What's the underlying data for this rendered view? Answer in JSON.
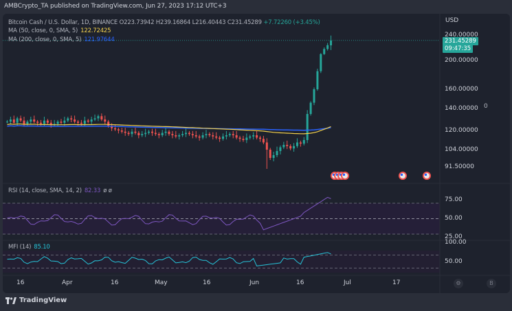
{
  "header": {
    "publish_text": "AMBCrypto_TA published on TradingView.com, Jun 27, 2023 17:12 UTC+3"
  },
  "legend": {
    "symbol": "Bitcoin Cash / U.S. Dollar, 1D, BINANCE",
    "open": "O223.73942",
    "high": "H239.16864",
    "low": "L216.40443",
    "close": "C231.45289",
    "change": "+7.72260 (+3.45%)",
    "ma50_label": "MA (50, close, 0, SMA, 5)",
    "ma50_value": "122.72425",
    "ma200_label": "MA (200, close, 0, SMA, 5)",
    "ma200_value": "121.97644"
  },
  "rsi": {
    "label": "RSI (14, close, SMA, 14, 2)",
    "value": "82.33",
    "extra": "ø ø"
  },
  "mfi": {
    "label": "MFI (14)",
    "value": "85.10"
  },
  "price_axis": {
    "currency": "USD",
    "ticks": [
      "240.00000",
      "200.00000",
      "160.00000",
      "140.00000",
      "120.00000",
      "104.00000",
      "91.50000"
    ],
    "current_price": "231.45289",
    "countdown": "09:47:35",
    "side_marker": "0"
  },
  "rsi_axis": {
    "ticks": [
      "75.00",
      "50.00",
      "25.00"
    ]
  },
  "mfi_axis": {
    "ticks": [
      "100.00",
      "50.00"
    ]
  },
  "time_axis": {
    "ticks": [
      "16",
      "Apr",
      "16",
      "May",
      "16",
      "Jun",
      "16",
      "Jul",
      "17"
    ]
  },
  "footer": {
    "brand": "TradingView"
  },
  "buttons": {
    "settings_glyph": "⚙",
    "auto_glyph": "B"
  },
  "colors": {
    "up": "#26a69a",
    "down": "#ef5350",
    "ma50": "#f5d24d",
    "ma200": "#2962ff",
    "rsi": "#7e57c2",
    "mfi": "#26c6da"
  },
  "chart_data": {
    "type": "candlestick",
    "title": "Bitcoin Cash / U.S. Dollar, 1D, BINANCE",
    "price_range": [
      91.5,
      240
    ],
    "x_range": [
      "Mar 14, 2023",
      "Jun 27, 2023"
    ],
    "x_ticks": [
      "16",
      "Apr",
      "16",
      "May",
      "16",
      "Jun",
      "16",
      "Jul",
      "17"
    ],
    "last_candle": {
      "open": 223.73942,
      "high": 239.16864,
      "low": 216.40443,
      "close": 231.45289
    },
    "candles_close": [
      128,
      130,
      127,
      131,
      129,
      126,
      128,
      130,
      128,
      127,
      126,
      129,
      127,
      125,
      126,
      128,
      127,
      129,
      131,
      130,
      128,
      127,
      126,
      129,
      128,
      130,
      131,
      133,
      130,
      128,
      124,
      122,
      121,
      120,
      119,
      118,
      117,
      119,
      118,
      116,
      117,
      118,
      119,
      118,
      117,
      116,
      118,
      119,
      117,
      116,
      115,
      116,
      117,
      118,
      117,
      116,
      115,
      114,
      116,
      117,
      116,
      115,
      114,
      113,
      115,
      116,
      117,
      116,
      114,
      113,
      112,
      114,
      115,
      116,
      114,
      113,
      110,
      104,
      98,
      100,
      103,
      106,
      108,
      107,
      105,
      107,
      110,
      109,
      112,
      135,
      146,
      160,
      185,
      210,
      218,
      224,
      231.45
    ],
    "series": [
      {
        "name": "MA (50, close, 0, SMA, 5)",
        "last": 122.72425
      },
      {
        "name": "MA (200, close, 0, SMA, 5)",
        "last": 121.97644
      }
    ],
    "indicators": [
      {
        "name": "RSI (14, close, SMA, 14, 2)",
        "last": 82.33,
        "levels": [
          75,
          50,
          25
        ]
      },
      {
        "name": "MFI (14)",
        "last": 85.1,
        "levels": [
          100,
          50
        ]
      }
    ]
  }
}
